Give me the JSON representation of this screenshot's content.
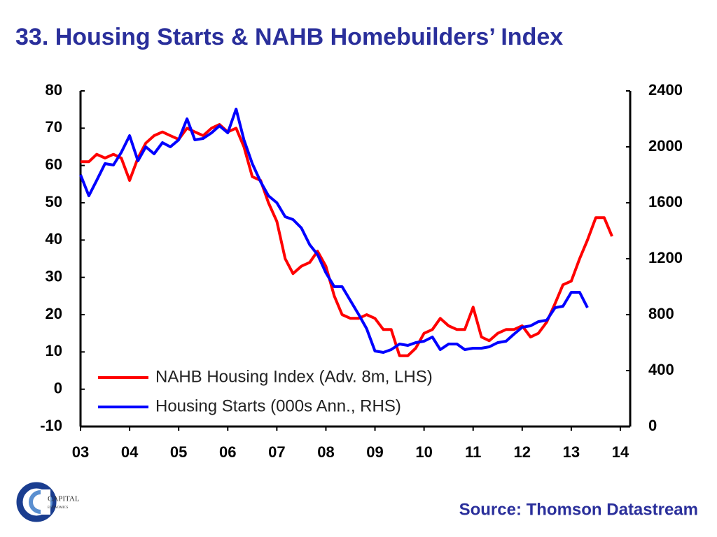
{
  "chart_data": {
    "type": "line",
    "title": "33. Housing Starts & NAHB Homebuilders’ Index",
    "source": "Source: Thomson Datastream",
    "x": [
      3,
      3.17,
      3.33,
      3.5,
      3.67,
      3.83,
      4,
      4.17,
      4.33,
      4.5,
      4.67,
      4.83,
      5,
      5.17,
      5.33,
      5.5,
      5.67,
      5.83,
      6,
      6.17,
      6.33,
      6.5,
      6.67,
      6.83,
      7,
      7.17,
      7.33,
      7.5,
      7.67,
      7.83,
      8,
      8.17,
      8.33,
      8.5,
      8.67,
      8.83,
      9,
      9.17,
      9.33,
      9.5,
      9.67,
      9.83,
      10,
      10.17,
      10.33,
      10.5,
      10.67,
      10.83,
      11,
      11.17,
      11.33,
      11.5,
      11.67,
      11.83,
      12,
      12.17,
      12.33,
      12.5,
      12.67,
      12.83,
      13,
      13.17,
      13.33,
      13.5,
      13.67,
      13.83
    ],
    "series": [
      {
        "name": "NAHB Housing Index (Adv. 8m, LHS)",
        "color": "#ff0000",
        "axis": "y",
        "values": [
          61,
          61,
          63,
          62,
          63,
          62,
          56,
          62,
          66,
          68,
          69,
          68,
          67,
          70,
          69,
          68,
          70,
          71,
          69,
          70,
          65,
          57,
          56,
          50,
          45,
          35,
          31,
          33,
          34,
          37,
          33,
          25,
          20,
          19,
          19,
          20,
          19,
          16,
          16,
          9,
          9,
          11,
          15,
          16,
          19,
          17,
          16,
          16,
          22,
          14,
          13,
          15,
          16,
          16,
          17,
          14,
          15,
          18,
          23,
          28,
          29,
          35,
          40,
          46,
          46,
          41
        ]
      },
      {
        "name": "Housing Starts (000s Ann., RHS)",
        "color": "#0000ff",
        "axis": "y2",
        "values": [
          1800,
          1650,
          1760,
          1880,
          1870,
          1960,
          2080,
          1900,
          2000,
          1950,
          2030,
          2000,
          2050,
          2200,
          2050,
          2060,
          2100,
          2150,
          2100,
          2270,
          2050,
          1880,
          1750,
          1650,
          1600,
          1500,
          1480,
          1420,
          1300,
          1230,
          1100,
          1000,
          1000,
          900,
          800,
          700,
          540,
          530,
          550,
          590,
          580,
          600,
          610,
          640,
          550,
          590,
          590,
          550,
          560,
          560,
          570,
          600,
          610,
          660,
          710,
          720,
          750,
          760,
          850,
          860,
          960,
          960,
          850,
          null,
          null,
          null
        ]
      }
    ],
    "xlim": [
      3,
      14.2
    ],
    "xticks": [
      {
        "value": 3,
        "label": "03"
      },
      {
        "value": 4,
        "label": "04"
      },
      {
        "value": 5,
        "label": "05"
      },
      {
        "value": 6,
        "label": "06"
      },
      {
        "value": 7,
        "label": "07"
      },
      {
        "value": 8,
        "label": "08"
      },
      {
        "value": 9,
        "label": "09"
      },
      10,
      11,
      12,
      13,
      14
    ],
    "ylim": [
      -10,
      80
    ],
    "yticks": [
      -10,
      0,
      10,
      20,
      30,
      40,
      50,
      60,
      70,
      80
    ],
    "y2lim": [
      0,
      2400
    ],
    "y2ticks": [
      0,
      400,
      800,
      1200,
      1600,
      2000,
      2400
    ],
    "legend": "lower left",
    "grid": false
  },
  "logo": {
    "line1": "CAPITAL",
    "line2": "ECONOMICS"
  }
}
